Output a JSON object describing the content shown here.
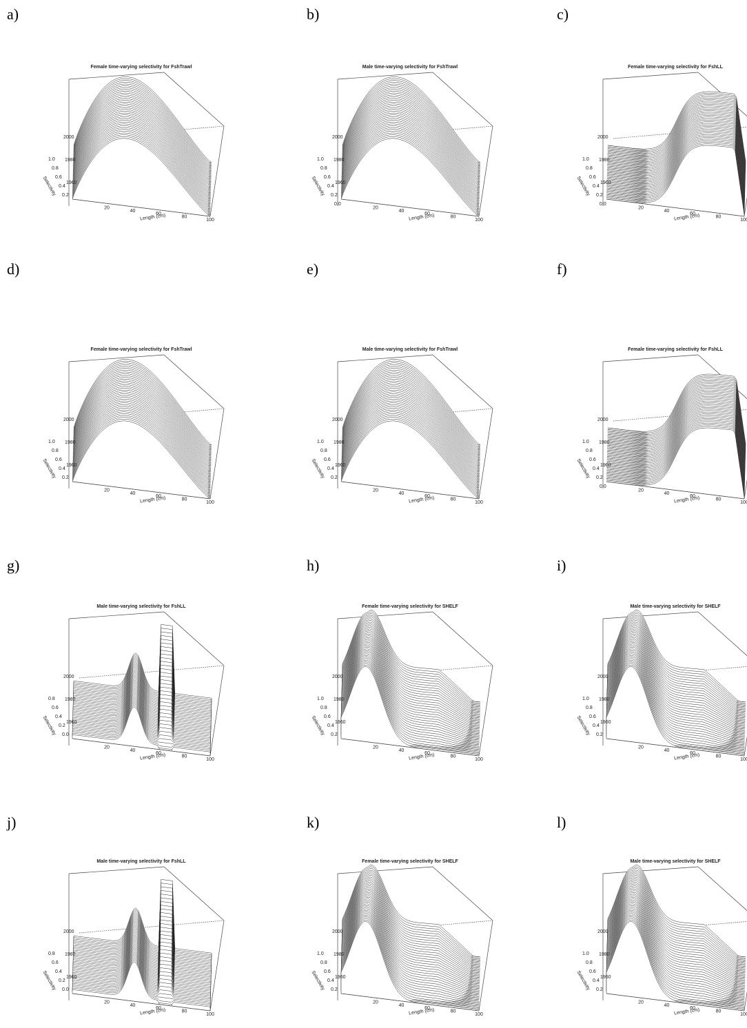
{
  "panels": [
    {
      "label": "a)",
      "title": "Female time-varying selectivity for FshTrawl",
      "year_ticks": [
        "2000",
        "1980",
        "1960"
      ],
      "selectivity_ticks": [
        "1.0",
        "0.8",
        "0.6",
        "0.4",
        "0.2"
      ],
      "length_ticks": [
        "20",
        "40",
        "60",
        "80",
        "100"
      ],
      "x_label": "Length (cm)",
      "y_label": "Selectivity"
    },
    {
      "label": "b)",
      "title": "Male time-varying selectivity for FshTrawl",
      "year_ticks": [
        "2000",
        "1980",
        "1960"
      ],
      "selectivity_ticks": [
        "1.0",
        "0.8",
        "0.6",
        "0.4",
        "0.2",
        "0.0"
      ],
      "length_ticks": [
        "20",
        "40",
        "60",
        "80",
        "100"
      ],
      "x_label": "Length (cm)",
      "y_label": "Selectivity"
    },
    {
      "label": "c)",
      "title": "Female time-varying selectivity for FshLL",
      "year_ticks": [
        "2000",
        "1980",
        "1960"
      ],
      "selectivity_ticks": [
        "1.0",
        "0.8",
        "0.6",
        "0.4",
        "0.2",
        "0.0"
      ],
      "length_ticks": [
        "20",
        "40",
        "60",
        "80",
        "100"
      ],
      "x_label": "Length (cm)",
      "y_label": "Selectivity"
    },
    {
      "label": "d)",
      "title": "Female time-varying selectivity for FshTrawl",
      "year_ticks": [
        "2000",
        "1980",
        "1960"
      ],
      "selectivity_ticks": [
        "1.0",
        "0.8",
        "0.6",
        "0.4",
        "0.2"
      ],
      "length_ticks": [
        "20",
        "40",
        "60",
        "80",
        "100"
      ],
      "x_label": "Length (cm)",
      "y_label": "Selectivity"
    },
    {
      "label": "e)",
      "title": "Male time-varying selectivity for FshTrawl",
      "year_ticks": [
        "2000",
        "1980",
        "1960"
      ],
      "selectivity_ticks": [
        "1.0",
        "0.8",
        "0.6",
        "0.4",
        "0.2"
      ],
      "length_ticks": [
        "20",
        "40",
        "60",
        "80",
        "100"
      ],
      "x_label": "Length (cm)",
      "y_label": "Selectivity"
    },
    {
      "label": "f)",
      "title": "Female time-varying selectivity for FshLL",
      "year_ticks": [
        "2000",
        "1980",
        "1960"
      ],
      "selectivity_ticks": [
        "1.0",
        "0.8",
        "0.6",
        "0.4",
        "0.2",
        "0.0"
      ],
      "length_ticks": [
        "20",
        "40",
        "60",
        "80",
        "100"
      ],
      "x_label": "Length (cm)",
      "y_label": "Selectivity"
    },
    {
      "label": "g)",
      "title": "Male time-varying selectivity for FshLL",
      "year_ticks": [
        "2000",
        "1980",
        "1960"
      ],
      "selectivity_ticks": [
        "0.8",
        "0.6",
        "0.4",
        "0.2",
        "0.0"
      ],
      "length_ticks": [
        "20",
        "40",
        "60",
        "80",
        "100"
      ],
      "x_label": "Length (cm)",
      "y_label": "Selectivity"
    },
    {
      "label": "h)",
      "title": "Female time-varying selectivity for SHELF",
      "year_ticks": [
        "2000",
        "1980",
        "1960"
      ],
      "selectivity_ticks": [
        "1.0",
        "0.8",
        "0.6",
        "0.4",
        "0.2"
      ],
      "length_ticks": [
        "20",
        "40",
        "60",
        "80",
        "100"
      ],
      "x_label": "Length (cm)",
      "y_label": "Selectivity"
    },
    {
      "label": "i)",
      "title": "Male time-varying selectivity for SHELF",
      "year_ticks": [
        "2000",
        "1980",
        "1960"
      ],
      "selectivity_ticks": [
        "1.0",
        "0.8",
        "0.6",
        "0.4",
        "0.2"
      ],
      "length_ticks": [
        "20",
        "40",
        "60",
        "80",
        "100"
      ],
      "x_label": "Length (cm)",
      "y_label": "Selectivity"
    },
    {
      "label": "j)",
      "title": "Male time-varying selectivity for FshLL",
      "year_ticks": [
        "2000",
        "1980",
        "1960"
      ],
      "selectivity_ticks": [
        "0.8",
        "0.6",
        "0.4",
        "0.2",
        "0.0"
      ],
      "length_ticks": [
        "20",
        "40",
        "60",
        "80",
        "100"
      ],
      "x_label": "Length (cm)",
      "y_label": "Selectivity"
    },
    {
      "label": "k)",
      "title": "Female time-varying selectivity for SHELF",
      "year_ticks": [
        "2000",
        "1980",
        "1960"
      ],
      "selectivity_ticks": [
        "1.0",
        "0.8",
        "0.6",
        "0.4",
        "0.2"
      ],
      "length_ticks": [
        "20",
        "40",
        "60",
        "80",
        "100"
      ],
      "x_label": "Length (cm)",
      "y_label": "Selectivity"
    },
    {
      "label": "l)",
      "title": "Male time-varying selectivity for SHELF",
      "year_ticks": [
        "2000",
        "1980",
        "1960"
      ],
      "selectivity_ticks": [
        "1.0",
        "0.8",
        "0.6",
        "0.4",
        "0.2"
      ],
      "length_ticks": [
        "20",
        "40",
        "60",
        "80",
        "100"
      ],
      "x_label": "Length (cm)",
      "y_label": "Selectivity"
    }
  ]
}
